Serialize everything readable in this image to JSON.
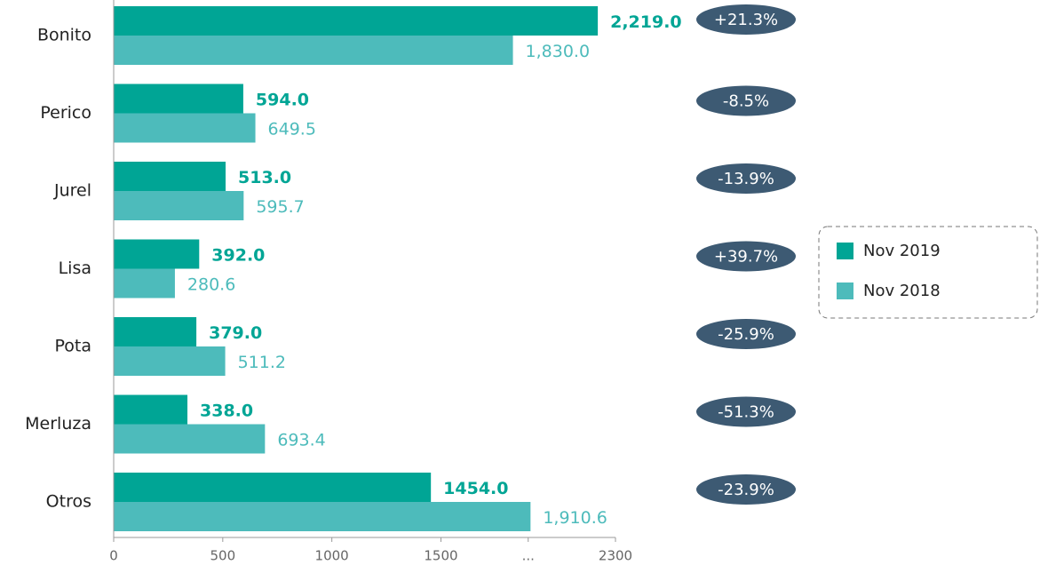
{
  "chart_data": {
    "type": "bar",
    "orientation": "horizontal",
    "categories": [
      "Bonito",
      "Perico",
      "Jurel",
      "Lisa",
      "Pota",
      "Merluza",
      "Otros"
    ],
    "series": [
      {
        "name": "Nov 2019",
        "color": "#00a595",
        "values": [
          2219,
          594,
          513,
          392,
          379,
          338,
          1454
        ],
        "value_labels": [
          "2,219.0",
          "594.0",
          "513.0",
          "392.0",
          "379.0",
          "338.0",
          "1454.0"
        ]
      },
      {
        "name": "Nov 2018",
        "color": "#4dbbbb",
        "values": [
          1830,
          649.5,
          595.7,
          280.6,
          511.2,
          693.4,
          1910.6
        ],
        "value_labels": [
          "1,830.0",
          "649.5",
          "595.7",
          "280.6",
          "511.2",
          "693.4",
          "1,910.6"
        ]
      }
    ],
    "change_labels": [
      "+21.3%",
      "-8.5%",
      "-13.9%",
      "+39.7%",
      "-25.9%",
      "-51.3%",
      "-23.9%"
    ],
    "badge_color": "#3d5a73",
    "xlim": [
      0,
      2300
    ],
    "xticks": [
      0,
      500,
      1000,
      1500,
      {
        "value": 1900,
        "label": "..."
      },
      2300
    ],
    "legend": "right"
  }
}
